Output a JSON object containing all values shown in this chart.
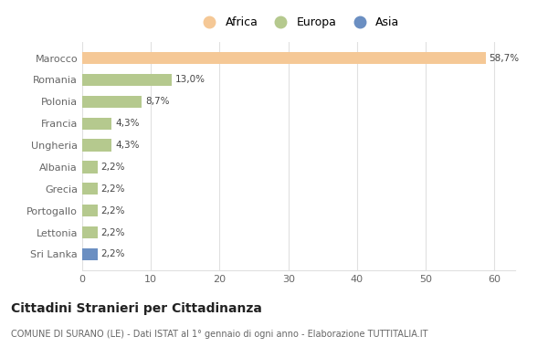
{
  "categories": [
    "Marocco",
    "Romania",
    "Polonia",
    "Francia",
    "Ungheria",
    "Albania",
    "Grecia",
    "Portogallo",
    "Lettonia",
    "Sri Lanka"
  ],
  "values": [
    58.7,
    13.0,
    8.7,
    4.3,
    4.3,
    2.2,
    2.2,
    2.2,
    2.2,
    2.2
  ],
  "labels": [
    "58,7%",
    "13,0%",
    "8,7%",
    "4,3%",
    "4,3%",
    "2,2%",
    "2,2%",
    "2,2%",
    "2,2%",
    "2,2%"
  ],
  "bar_colors": [
    "#F5C896",
    "#B5C98E",
    "#B5C98E",
    "#B5C98E",
    "#B5C98E",
    "#B5C98E",
    "#B5C98E",
    "#B5C98E",
    "#B5C98E",
    "#6B8FC2"
  ],
  "legend_labels": [
    "Africa",
    "Europa",
    "Asia"
  ],
  "legend_colors": [
    "#F5C896",
    "#B5C98E",
    "#6B8FC2"
  ],
  "title": "Cittadini Stranieri per Cittadinanza",
  "subtitle": "COMUNE DI SURANO (LE) - Dati ISTAT al 1° gennaio di ogni anno - Elaborazione TUTTITALIA.IT",
  "xlim": [
    0,
    63
  ],
  "xticks": [
    0,
    10,
    20,
    30,
    40,
    50,
    60
  ],
  "background_color": "#ffffff",
  "grid_color": "#e0e0e0"
}
